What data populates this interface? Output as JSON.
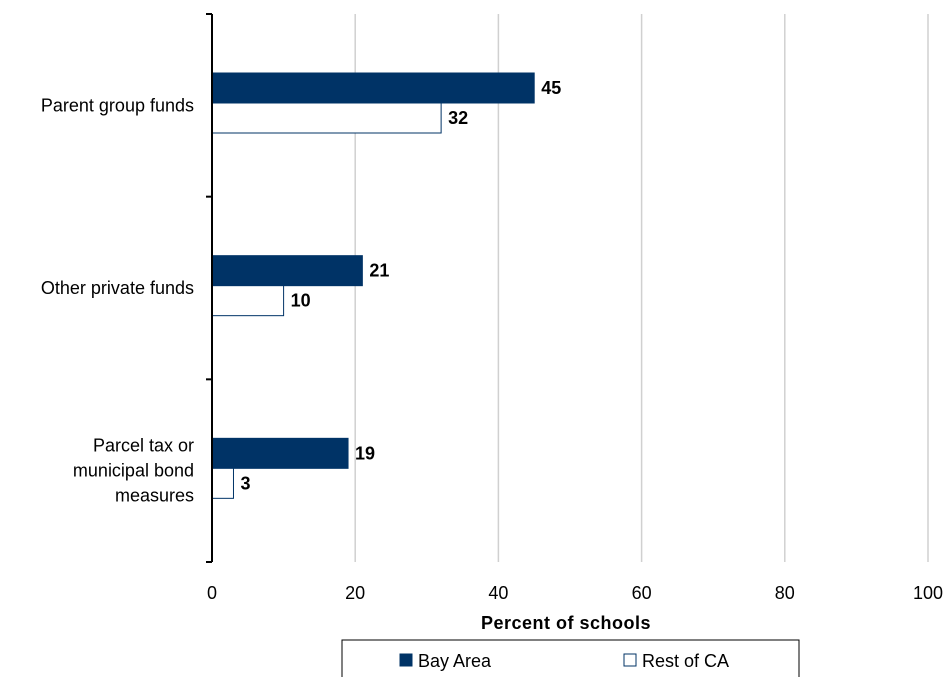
{
  "chart_data": {
    "type": "bar",
    "orientation": "horizontal",
    "categories": [
      [
        "Parent group funds"
      ],
      [
        "Other private funds"
      ],
      [
        "Parcel tax or",
        "municipal bond",
        "measures"
      ]
    ],
    "series": [
      {
        "name": "Bay Area",
        "values": [
          45,
          21,
          19
        ],
        "color": "#003366",
        "fill": "solid"
      },
      {
        "name": "Rest of CA",
        "values": [
          32,
          10,
          3
        ],
        "color": "#003366",
        "fill": "outline"
      }
    ],
    "data_labels": [
      [
        "45",
        "21",
        "19"
      ],
      [
        "32",
        "10",
        "3"
      ]
    ],
    "xlabel": "Percent of schools",
    "xlim": [
      0,
      100
    ],
    "xticks": [
      0,
      20,
      40,
      60,
      80,
      100
    ],
    "grid": "vertical",
    "legend_position": "bottom"
  }
}
